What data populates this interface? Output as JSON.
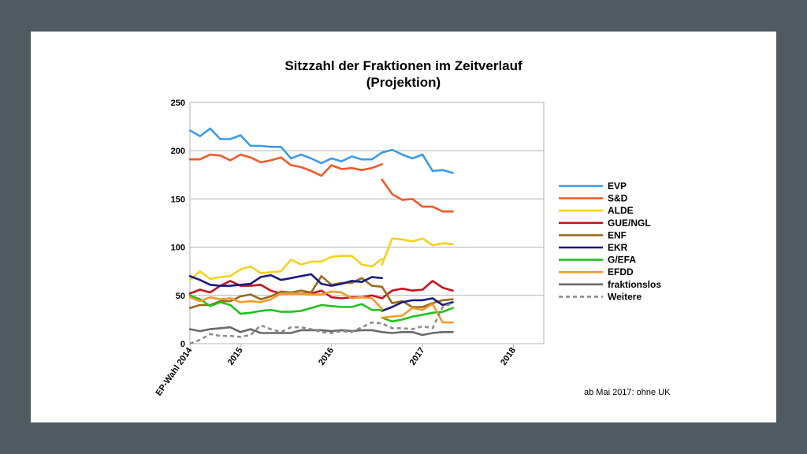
{
  "chart_data": {
    "type": "line",
    "title_line1": "Sitzzahl der Fraktionen im Zeitverlauf",
    "title_line2": "(Projektion)",
    "note": "ab Mai 2017: ohne UK",
    "ylim": [
      0,
      250
    ],
    "yticks": [
      "0",
      "50",
      "100",
      "150",
      "200",
      "250"
    ],
    "xlim": [
      0,
      35
    ],
    "xticks": [
      {
        "label": "EP-Wahl 2014",
        "x": 0
      },
      {
        "label": "2015",
        "x": 5
      },
      {
        "label": "2016",
        "x": 14
      },
      {
        "label": "2017",
        "x": 23
      },
      {
        "label": "2018",
        "x": 32
      }
    ],
    "grid": true,
    "legend_position": "right",
    "series": [
      {
        "name": "EVP",
        "color": "#3d9be9",
        "dash": false,
        "segments": [
          [
            [
              0,
              221
            ],
            [
              1,
              215
            ],
            [
              2,
              223
            ],
            [
              3,
              212
            ],
            [
              4,
              212
            ],
            [
              5,
              216
            ],
            [
              6,
              205
            ],
            [
              7,
              205
            ],
            [
              8,
              204
            ],
            [
              9,
              204
            ],
            [
              10,
              192
            ],
            [
              11,
              196
            ],
            [
              12,
              192
            ],
            [
              13,
              187
            ],
            [
              14,
              192
            ],
            [
              15,
              189
            ],
            [
              16,
              194
            ],
            [
              17,
              191
            ],
            [
              18,
              191
            ],
            [
              19,
              198
            ],
            [
              20,
              201
            ],
            [
              21,
              196
            ],
            [
              22,
              192
            ],
            [
              23,
              196
            ],
            [
              24,
              179
            ],
            [
              25,
              180
            ],
            [
              26,
              177
            ]
          ]
        ]
      },
      {
        "name": "S&D",
        "color": "#f05a28",
        "dash": false,
        "segments": [
          [
            [
              0,
              191
            ],
            [
              1,
              191
            ],
            [
              2,
              196
            ],
            [
              3,
              195
            ],
            [
              4,
              190
            ],
            [
              5,
              196
            ],
            [
              6,
              193
            ],
            [
              7,
              188
            ],
            [
              8,
              190
            ],
            [
              9,
              193
            ],
            [
              10,
              185
            ],
            [
              11,
              183
            ],
            [
              12,
              179
            ],
            [
              13,
              174
            ],
            [
              14,
              185
            ],
            [
              15,
              181
            ],
            [
              16,
              182
            ],
            [
              17,
              180
            ],
            [
              18,
              182
            ],
            [
              19,
              186
            ]
          ],
          [
            [
              19,
              170
            ],
            [
              20,
              155
            ],
            [
              21,
              149
            ],
            [
              22,
              150
            ],
            [
              23,
              142
            ],
            [
              24,
              142
            ],
            [
              25,
              137
            ],
            [
              26,
              137
            ]
          ]
        ]
      },
      {
        "name": "ALDE",
        "color": "#f5d21f",
        "dash": false,
        "segments": [
          [
            [
              0,
              66
            ],
            [
              1,
              75
            ],
            [
              2,
              67
            ],
            [
              3,
              69
            ],
            [
              4,
              70
            ],
            [
              5,
              77
            ],
            [
              6,
              80
            ],
            [
              7,
              73
            ],
            [
              8,
              74
            ],
            [
              9,
              75
            ],
            [
              10,
              87
            ],
            [
              11,
              82
            ],
            [
              12,
              85
            ],
            [
              13,
              85
            ],
            [
              14,
              90
            ],
            [
              15,
              91
            ],
            [
              16,
              91
            ],
            [
              17,
              82
            ],
            [
              18,
              80
            ],
            [
              19,
              88
            ]
          ],
          [
            [
              19,
              82
            ],
            [
              20,
              109
            ],
            [
              21,
              108
            ],
            [
              22,
              106
            ],
            [
              23,
              109
            ],
            [
              24,
              102
            ],
            [
              25,
              104
            ],
            [
              26,
              103
            ]
          ]
        ]
      },
      {
        "name": "GUE/NGL",
        "color": "#c8141e",
        "dash": false,
        "segments": [
          [
            [
              0,
              52
            ],
            [
              1,
              56
            ],
            [
              2,
              53
            ],
            [
              3,
              60
            ],
            [
              4,
              65
            ],
            [
              5,
              60
            ],
            [
              6,
              60
            ],
            [
              7,
              61
            ],
            [
              8,
              55
            ],
            [
              9,
              52
            ],
            [
              10,
              52
            ],
            [
              11,
              52
            ],
            [
              12,
              52
            ],
            [
              13,
              55
            ],
            [
              14,
              48
            ],
            [
              15,
              47
            ],
            [
              16,
              48
            ],
            [
              17,
              48
            ],
            [
              18,
              50
            ],
            [
              19,
              47
            ],
            [
              20,
              55
            ],
            [
              21,
              57
            ],
            [
              22,
              55
            ],
            [
              23,
              56
            ],
            [
              24,
              65
            ],
            [
              25,
              58
            ],
            [
              26,
              55
            ]
          ]
        ]
      },
      {
        "name": "ENF",
        "color": "#9a6b1e",
        "dash": false,
        "segments": [
          [
            [
              0,
              37
            ],
            [
              1,
              40
            ],
            [
              2,
              40
            ],
            [
              3,
              44
            ],
            [
              4,
              44
            ],
            [
              5,
              49
            ],
            [
              6,
              51
            ],
            [
              7,
              46
            ],
            [
              8,
              49
            ],
            [
              9,
              54
            ],
            [
              10,
              53
            ],
            [
              11,
              55
            ],
            [
              12,
              53
            ],
            [
              13,
              70
            ],
            [
              14,
              61
            ],
            [
              15,
              63
            ],
            [
              16,
              63
            ],
            [
              17,
              68
            ],
            [
              18,
              60
            ],
            [
              19,
              59
            ],
            [
              20,
              42
            ],
            [
              21,
              44
            ],
            [
              22,
              38
            ],
            [
              23,
              38
            ],
            [
              24,
              42
            ],
            [
              25,
              45
            ],
            [
              26,
              46
            ]
          ]
        ]
      },
      {
        "name": "EKR",
        "color": "#1a1a80",
        "dash": false,
        "segments": [
          [
            [
              0,
              70
            ],
            [
              1,
              66
            ],
            [
              2,
              61
            ],
            [
              3,
              60
            ],
            [
              4,
              60
            ],
            [
              5,
              61
            ],
            [
              6,
              62
            ],
            [
              7,
              69
            ],
            [
              8,
              71
            ],
            [
              9,
              66
            ],
            [
              10,
              68
            ],
            [
              11,
              70
            ],
            [
              12,
              72
            ],
            [
              13,
              62
            ],
            [
              14,
              60
            ],
            [
              15,
              62
            ],
            [
              16,
              65
            ],
            [
              17,
              64
            ],
            [
              18,
              69
            ],
            [
              19,
              68
            ]
          ],
          [
            [
              19,
              34
            ],
            [
              20,
              38
            ],
            [
              21,
              43
            ],
            [
              22,
              45
            ],
            [
              23,
              45
            ],
            [
              24,
              47
            ],
            [
              25,
              40
            ],
            [
              26,
              43
            ]
          ]
        ]
      },
      {
        "name": "G/EFA",
        "color": "#22c21e",
        "dash": false,
        "segments": [
          [
            [
              0,
              50
            ],
            [
              1,
              46
            ],
            [
              2,
              39
            ],
            [
              3,
              43
            ],
            [
              4,
              40
            ],
            [
              5,
              31
            ],
            [
              6,
              32
            ],
            [
              7,
              34
            ],
            [
              8,
              35
            ],
            [
              9,
              33
            ],
            [
              10,
              33
            ],
            [
              11,
              34
            ],
            [
              12,
              37
            ],
            [
              13,
              40
            ],
            [
              14,
              39
            ],
            [
              15,
              38
            ],
            [
              16,
              38
            ],
            [
              17,
              41
            ],
            [
              18,
              35
            ],
            [
              19,
              35
            ]
          ],
          [
            [
              19,
              27
            ],
            [
              20,
              23
            ],
            [
              21,
              25
            ],
            [
              22,
              28
            ],
            [
              23,
              30
            ],
            [
              24,
              32
            ],
            [
              25,
              33
            ],
            [
              26,
              37
            ]
          ]
        ]
      },
      {
        "name": "EFDD",
        "color": "#f59a2a",
        "dash": false,
        "segments": [
          [
            [
              0,
              48
            ],
            [
              1,
              44
            ],
            [
              2,
              48
            ],
            [
              3,
              46
            ],
            [
              4,
              47
            ],
            [
              5,
              43
            ],
            [
              6,
              44
            ],
            [
              7,
              43
            ],
            [
              8,
              46
            ],
            [
              9,
              52
            ],
            [
              10,
              52
            ],
            [
              11,
              52
            ],
            [
              12,
              51
            ],
            [
              13,
              51
            ],
            [
              14,
              54
            ],
            [
              15,
              53
            ],
            [
              16,
              47
            ],
            [
              17,
              48
            ],
            [
              18,
              47
            ],
            [
              19,
              36
            ]
          ],
          [
            [
              19,
              27
            ],
            [
              20,
              28
            ],
            [
              21,
              29
            ],
            [
              22,
              37
            ],
            [
              23,
              35
            ],
            [
              24,
              41
            ],
            [
              25,
              22
            ],
            [
              26,
              22
            ]
          ]
        ]
      },
      {
        "name": "fraktionslos",
        "color": "#6a6a6a",
        "dash": false,
        "segments": [
          [
            [
              0,
              15
            ],
            [
              1,
              13
            ],
            [
              2,
              15
            ],
            [
              3,
              16
            ],
            [
              4,
              17
            ],
            [
              5,
              12
            ],
            [
              6,
              15
            ],
            [
              7,
              11
            ],
            [
              8,
              11
            ],
            [
              9,
              11
            ],
            [
              10,
              11
            ],
            [
              11,
              14
            ],
            [
              12,
              14
            ],
            [
              13,
              14
            ],
            [
              14,
              13
            ],
            [
              15,
              14
            ],
            [
              16,
              13
            ],
            [
              17,
              14
            ],
            [
              18,
              14
            ],
            [
              19,
              12
            ],
            [
              20,
              11
            ],
            [
              21,
              12
            ],
            [
              22,
              12
            ],
            [
              23,
              9
            ],
            [
              24,
              11
            ],
            [
              25,
              12
            ],
            [
              26,
              12
            ]
          ]
        ]
      },
      {
        "name": "Weitere",
        "color": "#8c8c8c",
        "dash": true,
        "segments": [
          [
            [
              0,
              0
            ],
            [
              1,
              4
            ],
            [
              2,
              10
            ],
            [
              3,
              8
            ],
            [
              4,
              8
            ],
            [
              5,
              7
            ],
            [
              6,
              9
            ],
            [
              7,
              19
            ],
            [
              8,
              15
            ],
            [
              9,
              12
            ],
            [
              10,
              17
            ],
            [
              11,
              17
            ],
            [
              12,
              15
            ],
            [
              13,
              12
            ],
            [
              14,
              11
            ],
            [
              15,
              13
            ],
            [
              16,
              12
            ],
            [
              17,
              17
            ],
            [
              18,
              22
            ],
            [
              19,
              21
            ],
            [
              20,
              16
            ],
            [
              21,
              16
            ],
            [
              22,
              15
            ],
            [
              23,
              18
            ],
            [
              24,
              16
            ],
            [
              25,
              38
            ],
            [
              26,
              42
            ]
          ]
        ]
      }
    ]
  }
}
